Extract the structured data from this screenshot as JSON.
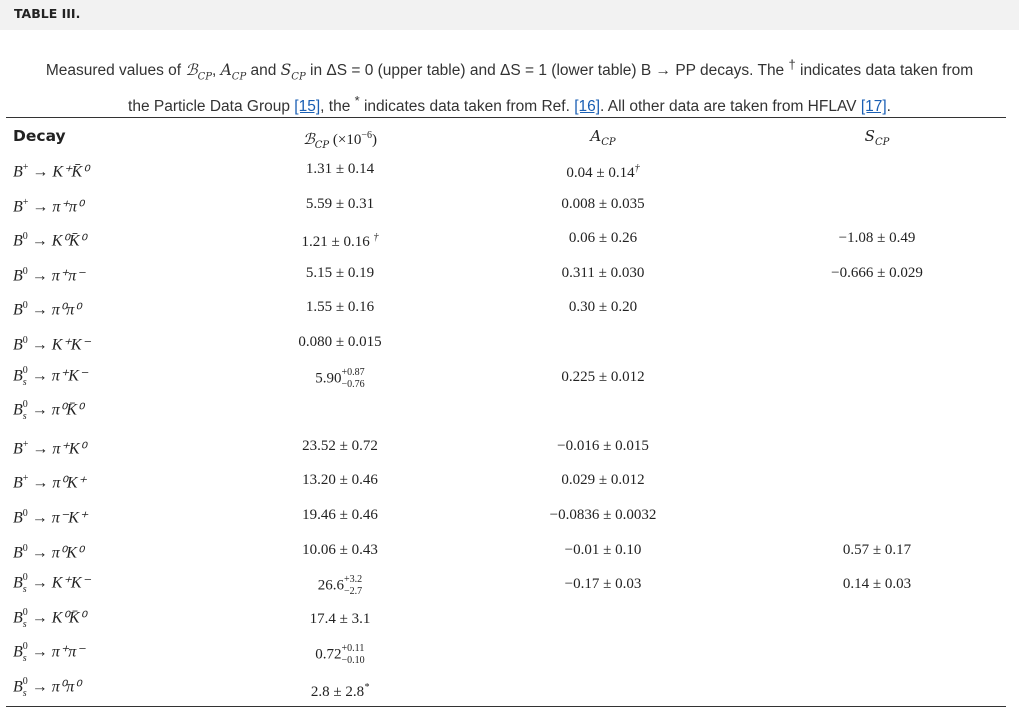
{
  "section_title": "TABLE III.",
  "caption": {
    "line1_a": "Measured values of ",
    "b_cp": "ℬ",
    "cp_sub": "CP",
    "a_cp": "A",
    "s_cp": "S",
    "line1_b": " and ",
    "line1_c": " in ΔS = 0 (upper table) and ΔS = 1 (lower table) B → PP decays. The ",
    "dagger": "†",
    "line1_d": " indicates data taken from",
    "line2_a": "the Particle Data Group ",
    "ref15": "[15]",
    "line2_b": ", the ",
    "star": "*",
    "line2_c": " indicates data taken from Ref. ",
    "ref16": "[16]",
    "line2_d": ". All other data are taken from HFLAV ",
    "ref17": "[17]",
    "line2_e": "."
  },
  "headers": {
    "decay": "Decay",
    "bcp": "ℬ",
    "bcp_sub": "CP",
    "bcp_unit": " (×10",
    "bcp_exp": "−6",
    "bcp_close": ")",
    "acp": "A",
    "acp_sub": "CP",
    "scp": "S",
    "scp_sub": "CP"
  },
  "rows": [
    {
      "parent_sup": "+",
      "parent_sub": "",
      "products": "K⁺K̄⁰",
      "bcp": {
        "v": "1.31 ± 0.14"
      },
      "acp": {
        "v": "0.04 ± 0.14",
        "mark": "†"
      },
      "scp": null
    },
    {
      "parent_sup": "+",
      "parent_sub": "",
      "products": "π⁺π⁰",
      "bcp": {
        "v": "5.59 ± 0.31"
      },
      "acp": {
        "v": "0.008 ± 0.035"
      },
      "scp": null
    },
    {
      "parent_sup": "0",
      "parent_sub": "",
      "products": "K⁰K̄⁰",
      "bcp": {
        "v": "1.21 ± 0.16 ",
        "mark": "†"
      },
      "acp": {
        "v": "0.06 ± 0.26"
      },
      "scp": {
        "v": "−1.08 ± 0.49"
      }
    },
    {
      "parent_sup": "0",
      "parent_sub": "",
      "products": "π⁺π⁻",
      "bcp": {
        "v": "5.15 ± 0.19"
      },
      "acp": {
        "v": "0.311 ± 0.030"
      },
      "scp": {
        "v": "−0.666 ± 0.029"
      }
    },
    {
      "parent_sup": "0",
      "parent_sub": "",
      "products": "π⁰π⁰",
      "bcp": {
        "v": "1.55 ± 0.16"
      },
      "acp": {
        "v": "0.30 ± 0.20"
      },
      "scp": null
    },
    {
      "parent_sup": "0",
      "parent_sub": "",
      "products": "K⁺K⁻",
      "bcp": {
        "v": "0.080 ± 0.015"
      },
      "acp": null,
      "scp": null
    },
    {
      "parent_sup": "0",
      "parent_sub": "s",
      "products": "π⁺K⁻",
      "bcp": {
        "v": "5.90",
        "up": "+0.87",
        "down": "−0.76"
      },
      "acp": {
        "v": "0.225 ± 0.012"
      },
      "scp": null
    },
    {
      "parent_sup": "0",
      "parent_sub": "s",
      "products": "π⁰K̄⁰",
      "bcp": null,
      "acp": null,
      "scp": null
    },
    {
      "parent_sup": "+",
      "parent_sub": "",
      "products": "π⁺K⁰",
      "bcp": {
        "v": "23.52 ± 0.72"
      },
      "acp": {
        "v": "−0.016 ± 0.015"
      },
      "scp": null
    },
    {
      "parent_sup": "+",
      "parent_sub": "",
      "products": "π⁰K⁺",
      "bcp": {
        "v": "13.20 ± 0.46"
      },
      "acp": {
        "v": "0.029 ± 0.012"
      },
      "scp": null
    },
    {
      "parent_sup": "0",
      "parent_sub": "",
      "products": "π⁻K⁺",
      "bcp": {
        "v": "19.46 ± 0.46"
      },
      "acp": {
        "v": "−0.0836 ± 0.0032"
      },
      "scp": null
    },
    {
      "parent_sup": "0",
      "parent_sub": "",
      "products": "π⁰K⁰",
      "bcp": {
        "v": "10.06 ± 0.43"
      },
      "acp": {
        "v": "−0.01 ± 0.10"
      },
      "scp": {
        "v": "0.57 ± 0.17"
      }
    },
    {
      "parent_sup": "0",
      "parent_sub": "s",
      "products": "K⁺K⁻",
      "bcp": {
        "v": "26.6",
        "up": "+3.2",
        "down": "−2.7"
      },
      "acp": {
        "v": "−0.17 ± 0.03"
      },
      "scp": {
        "v": "0.14 ± 0.03"
      }
    },
    {
      "parent_sup": "0",
      "parent_sub": "s",
      "products": "K⁰K̄⁰",
      "bcp": {
        "v": "17.4 ± 3.1"
      },
      "acp": null,
      "scp": null
    },
    {
      "parent_sup": "0",
      "parent_sub": "s",
      "products": "π⁺π⁻",
      "bcp": {
        "v": "0.72",
        "up": "+0.11",
        "down": "−0.10"
      },
      "acp": null,
      "scp": null
    },
    {
      "parent_sup": "0",
      "parent_sub": "s",
      "products": "π⁰π⁰",
      "bcp": {
        "v": "2.8 ± 2.8",
        "mark": "*"
      },
      "acp": null,
      "scp": null
    }
  ],
  "decay_parent": "B",
  "decay_arrow": " → "
}
